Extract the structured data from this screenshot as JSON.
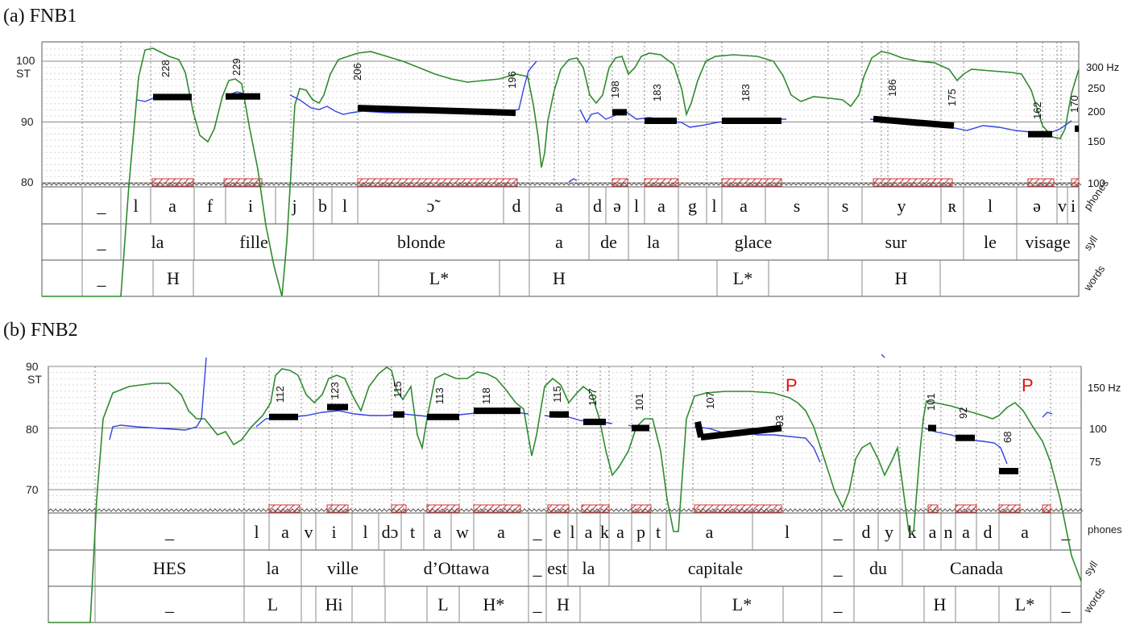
{
  "colors": {
    "intensity": "#2e8b2e",
    "pitch": "#3344dd",
    "target": "#000000",
    "hatch": "#cc3333",
    "prominence": "#e01010"
  },
  "chart_data": [
    {
      "type": "line",
      "title": "(a)  FNB1",
      "ylabel": "ST",
      "yticks": [
        "100",
        "90",
        "80"
      ],
      "hz_ticks": [
        "300 Hz",
        "250",
        "200",
        "150",
        "100"
      ],
      "tier_labels": [
        "phones",
        "syll",
        "words"
      ],
      "targets": [
        {
          "label": "228",
          "st": 94.1
        },
        {
          "label": "229",
          "st": 94.2
        },
        {
          "label": "206",
          "st": 92.3
        },
        {
          "label": "196",
          "st": 91.5
        },
        {
          "label": "198",
          "st": 91.6
        },
        {
          "label": "183",
          "st": 90.2
        },
        {
          "label": "183",
          "st": 90.2
        },
        {
          "label": "186",
          "st": 90.5
        },
        {
          "label": "175",
          "st": 89.4
        },
        {
          "label": "162",
          "st": 88.0
        },
        {
          "label": "170",
          "st": 88.9
        }
      ],
      "phones": [
        "_",
        "l",
        "a",
        "f",
        "i",
        "j",
        "b",
        "l",
        "ɔ̃",
        "d",
        "a",
        "d",
        "ə",
        "l",
        "a",
        "g",
        "l",
        "a",
        "s",
        "s",
        "y",
        "ʀ",
        "l",
        "ə",
        "v",
        "i"
      ],
      "syllables": [
        "_",
        "la",
        "fille",
        "blonde",
        "a",
        "de",
        "la",
        "glace",
        "sur",
        "le",
        "visage"
      ],
      "words": [
        "_",
        "H",
        "L*",
        "H",
        "L*",
        "H"
      ]
    },
    {
      "type": "line",
      "title": "(b) FNB2",
      "ylabel": "ST",
      "yticks": [
        "90",
        "80",
        "70"
      ],
      "hz_ticks": [
        "150 Hz",
        "100",
        "75"
      ],
      "tier_labels": [
        "phones",
        "syll",
        "words"
      ],
      "prominence_marks": [
        "P",
        "P"
      ],
      "targets": [
        {
          "label": "112",
          "st": 81.8
        },
        {
          "label": "123",
          "st": 83.4
        },
        {
          "label": "115",
          "st": 82.2
        },
        {
          "label": "113",
          "st": 81.8
        },
        {
          "label": "118",
          "st": 82.8
        },
        {
          "label": "115",
          "st": 82.2
        },
        {
          "label": "107",
          "st": 81.0
        },
        {
          "label": "101",
          "st": 80.0
        },
        {
          "label": "107",
          "st": 81.0
        },
        {
          "label": "93",
          "st": 78.5
        },
        {
          "label": "101",
          "st": 80.0
        },
        {
          "label": "92",
          "st": 78.4
        },
        {
          "label": "68",
          "st": 73.0
        }
      ],
      "phones": [
        "_",
        "l",
        "a",
        "v",
        "i",
        "l",
        "dɔ",
        "t",
        "a",
        "w",
        "a",
        "_",
        "e",
        "l",
        "a",
        "k",
        "a",
        "p",
        "t",
        "a",
        "l",
        "_",
        "d",
        "y",
        "k",
        "a",
        "n",
        "a",
        "d",
        "a",
        "_"
      ],
      "syllables": [
        "HES",
        "la",
        "ville",
        "d’Ottawa",
        "_",
        "est",
        "la",
        "capitale",
        "_",
        "du",
        "Canada"
      ],
      "words": [
        "_",
        "L",
        "Hi",
        "L",
        "H*",
        "_",
        "H",
        "L*",
        "_",
        "H",
        "L*",
        "_"
      ]
    }
  ]
}
